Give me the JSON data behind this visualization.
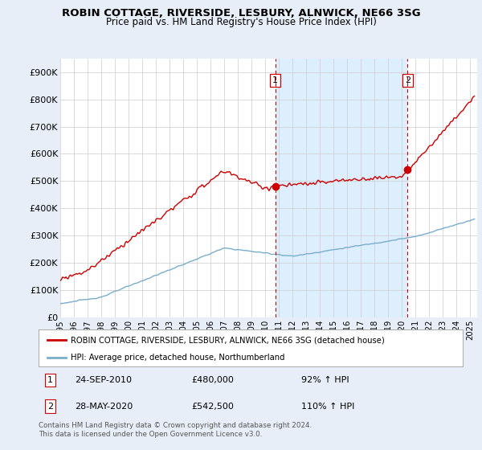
{
  "title": "ROBIN COTTAGE, RIVERSIDE, LESBURY, ALNWICK, NE66 3SG",
  "subtitle": "Price paid vs. HM Land Registry's House Price Index (HPI)",
  "ylim": [
    0,
    950000
  ],
  "yticks": [
    0,
    100000,
    200000,
    300000,
    400000,
    500000,
    600000,
    700000,
    800000,
    900000
  ],
  "ytick_labels": [
    "£0",
    "£100K",
    "£200K",
    "£300K",
    "£400K",
    "£500K",
    "£600K",
    "£700K",
    "£800K",
    "£900K"
  ],
  "xlim_start": 1995.0,
  "xlim_end": 2025.5,
  "property_color": "#cc0000",
  "hpi_color": "#7aadcc",
  "sale1_x": 2010.73,
  "sale1_y": 480000,
  "sale1_label": "1",
  "sale2_x": 2020.41,
  "sale2_y": 542500,
  "sale2_label": "2",
  "vline_color": "#cc0000",
  "shade_color": "#ddeeff",
  "legend_property": "ROBIN COTTAGE, RIVERSIDE, LESBURY, ALNWICK, NE66 3SG (detached house)",
  "legend_hpi": "HPI: Average price, detached house, Northumberland",
  "annotation1_num": "1",
  "annotation1_date": "24-SEP-2010",
  "annotation1_price": "£480,000",
  "annotation1_hpi": "92% ↑ HPI",
  "annotation2_num": "2",
  "annotation2_date": "28-MAY-2020",
  "annotation2_price": "£542,500",
  "annotation2_hpi": "110% ↑ HPI",
  "footer": "Contains HM Land Registry data © Crown copyright and database right 2024.\nThis data is licensed under the Open Government Licence v3.0.",
  "background_color": "#e8eef8",
  "plot_bg_color": "#ffffff",
  "grid_color": "#cccccc",
  "title_fontsize": 9.5,
  "subtitle_fontsize": 8.5
}
